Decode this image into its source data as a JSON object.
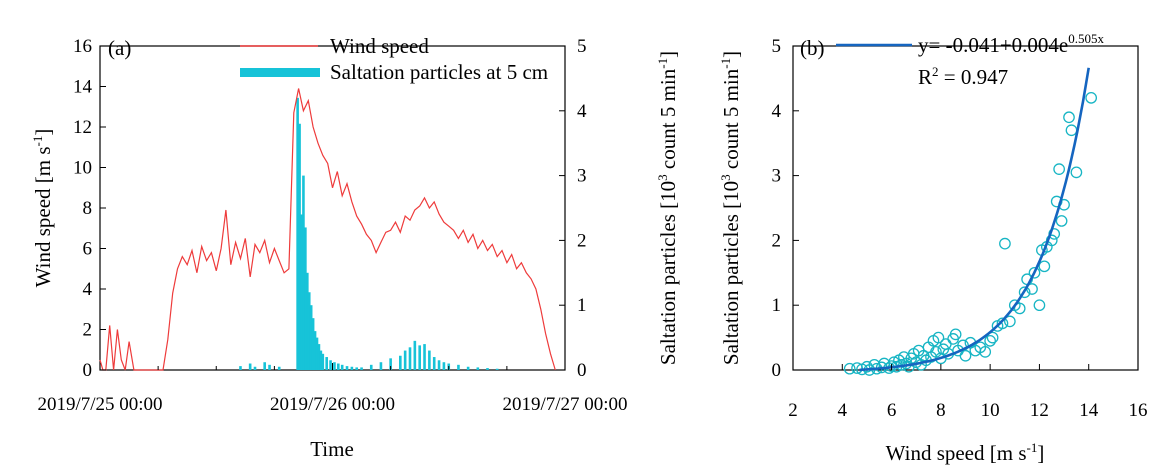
{
  "chart_data": [
    {
      "type": "line",
      "panel_label": "(a)",
      "xlabel": "Time",
      "ylabel_left": "Wind speed [m s",
      "ylabel_left_sup": "-1",
      "ylabel_left_end": "]",
      "ylabel_right": "Saltation particles [10",
      "ylabel_right_sup1": "3",
      "ylabel_right_mid": " count 5 min",
      "ylabel_right_sup2": "-1",
      "ylabel_right_end": "]",
      "x_tick_labels": [
        "2019/7/25 00:00",
        "2019/7/26 00:00",
        "2019/7/27 00:00"
      ],
      "x_range_hours": [
        0,
        48
      ],
      "ylim_left": [
        0,
        16
      ],
      "yticks_left": [
        "0",
        "2",
        "4",
        "6",
        "8",
        "10",
        "12",
        "14",
        "16"
      ],
      "ylim_right": [
        0,
        5
      ],
      "yticks_right": [
        "0",
        "1",
        "2",
        "3",
        "4",
        "5"
      ],
      "legend": {
        "placement": "top-center",
        "entries": [
          "Wind speed",
          "Saltation particles at 5 cm"
        ]
      },
      "series": [
        {
          "name": "Wind speed",
          "axis": "left",
          "color": "#ee3b3b",
          "x_hours": [
            0,
            0.3,
            0.6,
            1.0,
            1.4,
            1.8,
            2.2,
            2.6,
            3.0,
            3.5,
            4.0,
            4.5,
            5.0,
            5.5,
            6.0,
            6.5,
            7.0,
            7.5,
            8.0,
            8.5,
            9.0,
            9.5,
            10.0,
            10.5,
            11.0,
            11.5,
            12.0,
            12.5,
            13.0,
            13.5,
            14.0,
            14.5,
            15.0,
            15.5,
            16.0,
            16.5,
            17.0,
            17.5,
            18.0,
            18.5,
            19.0,
            19.5,
            20.0,
            20.5,
            21.0,
            21.5,
            22.0,
            22.5,
            23.0,
            23.5,
            24.0,
            24.5,
            25.0,
            25.5,
            26.0,
            26.5,
            27.0,
            27.5,
            28.0,
            28.5,
            29.0,
            29.5,
            30.0,
            30.5,
            31.0,
            31.5,
            32.0,
            32.5,
            33.0,
            33.5,
            34.0,
            34.5,
            35.0,
            35.5,
            36.0,
            36.5,
            37.0,
            37.5,
            38.0,
            38.5,
            39.0,
            39.5,
            40.0,
            40.5,
            41.0,
            41.5,
            42.0,
            42.5,
            43.0,
            43.5,
            44.0,
            44.5,
            45.0,
            45.5,
            46.0,
            46.5,
            47.0
          ],
          "values": [
            0.5,
            0,
            0,
            2.2,
            0,
            2.0,
            0.5,
            0,
            1.4,
            0,
            0,
            0,
            0,
            0,
            0,
            0,
            1.5,
            3.8,
            5.0,
            5.6,
            5.2,
            5.9,
            4.8,
            6.1,
            5.4,
            5.8,
            4.9,
            6.0,
            7.9,
            5.2,
            6.3,
            5.5,
            6.5,
            4.6,
            6.2,
            5.8,
            6.4,
            5.3,
            6.0,
            5.4,
            4.8,
            5.0,
            12.7,
            13.9,
            12.8,
            13.3,
            12.0,
            11.2,
            10.6,
            10.2,
            9.0,
            9.8,
            8.6,
            9.2,
            8.3,
            7.6,
            7.2,
            6.7,
            6.4,
            5.8,
            6.3,
            6.8,
            6.9,
            7.3,
            6.8,
            7.6,
            7.4,
            7.9,
            8.1,
            8.5,
            8.0,
            8.3,
            7.7,
            7.3,
            7.1,
            6.9,
            6.5,
            6.9,
            6.3,
            6.7,
            6.0,
            6.4,
            5.9,
            6.2,
            5.6,
            5.9,
            5.3,
            5.7,
            5.0,
            5.3,
            4.8,
            4.5,
            4.0,
            3.0,
            1.8,
            0.8,
            0
          ]
        },
        {
          "name": "Saltation particles at 5 cm",
          "axis": "right",
          "color": "#17c3d8",
          "x_hours": [
            14.5,
            15.5,
            16.0,
            17.0,
            17.5,
            18.5,
            20.4,
            20.6,
            20.8,
            21.0,
            21.2,
            21.4,
            21.6,
            21.8,
            22.0,
            22.2,
            22.4,
            22.6,
            22.8,
            23.0,
            23.4,
            23.8,
            24.2,
            24.6,
            25.0,
            25.5,
            26.0,
            26.5,
            27.0,
            28.0,
            29.0,
            30.0,
            31.0,
            31.5,
            32.0,
            32.5,
            33.0,
            33.5,
            34.0,
            34.5,
            35.0,
            35.5,
            36.0,
            37.0,
            38.0,
            39.0,
            40.0,
            41.0
          ],
          "values": [
            0.06,
            0.1,
            0.05,
            0.12,
            0.08,
            0.05,
            4.2,
            3.8,
            2.4,
            3.0,
            2.2,
            1.5,
            1.2,
            1.0,
            0.8,
            0.6,
            0.5,
            0.4,
            0.3,
            0.25,
            0.2,
            0.15,
            0.12,
            0.1,
            0.08,
            0.06,
            0.05,
            0.04,
            0.04,
            0.08,
            0.12,
            0.18,
            0.22,
            0.3,
            0.35,
            0.45,
            0.38,
            0.4,
            0.3,
            0.2,
            0.15,
            0.12,
            0.1,
            0.08,
            0.05,
            0.04,
            0.03,
            0.02
          ]
        }
      ]
    },
    {
      "type": "scatter",
      "panel_label": "(b)",
      "xlabel": "Wind speed [m s",
      "xlabel_sup": "-1",
      "xlabel_end": "]",
      "ylabel": "Saltation particles [10",
      "ylabel_sup1": "3",
      "ylabel_mid": " count 5 min",
      "ylabel_sup2": "-1",
      "ylabel_end": "]",
      "xlim": [
        2,
        16
      ],
      "xticks": [
        "2",
        "4",
        "6",
        "8",
        "10",
        "12",
        "14",
        "16"
      ],
      "ylim": [
        0,
        5
      ],
      "yticks": [
        "0",
        "1",
        "2",
        "3",
        "4",
        "5"
      ],
      "legend": {
        "placement": "top-center",
        "fit_label": "y= -0.041+0.004e",
        "fit_sup": "0.505x",
        "r2_label": "R",
        "r2_sup": "2",
        "r2_value": " = 0.947"
      },
      "fit": {
        "a": -0.041,
        "b": 0.004,
        "c": 0.505,
        "x_range": [
          4.7,
          14.0
        ],
        "color": "#1565c0"
      },
      "marker_color": "#17b5c4",
      "points": [
        [
          4.3,
          0.02
        ],
        [
          4.6,
          0.03
        ],
        [
          4.8,
          0.01
        ],
        [
          5.0,
          0.05
        ],
        [
          5.1,
          0.0
        ],
        [
          5.3,
          0.08
        ],
        [
          5.4,
          0.02
        ],
        [
          5.6,
          0.04
        ],
        [
          5.7,
          0.1
        ],
        [
          5.9,
          0.03
        ],
        [
          6.0,
          0.06
        ],
        [
          6.1,
          0.12
        ],
        [
          6.2,
          0.05
        ],
        [
          6.3,
          0.15
        ],
        [
          6.4,
          0.08
        ],
        [
          6.5,
          0.2
        ],
        [
          6.6,
          0.1
        ],
        [
          6.7,
          0.05
        ],
        [
          6.8,
          0.18
        ],
        [
          6.9,
          0.25
        ],
        [
          7.0,
          0.12
        ],
        [
          7.1,
          0.3
        ],
        [
          7.2,
          0.08
        ],
        [
          7.3,
          0.22
        ],
        [
          7.4,
          0.15
        ],
        [
          7.5,
          0.35
        ],
        [
          7.6,
          0.2
        ],
        [
          7.7,
          0.45
        ],
        [
          7.8,
          0.28
        ],
        [
          7.9,
          0.5
        ],
        [
          8.0,
          0.18
        ],
        [
          8.1,
          0.32
        ],
        [
          8.2,
          0.4
        ],
        [
          8.3,
          0.25
        ],
        [
          8.5,
          0.48
        ],
        [
          8.6,
          0.55
        ],
        [
          8.7,
          0.3
        ],
        [
          8.9,
          0.38
        ],
        [
          9.0,
          0.22
        ],
        [
          9.2,
          0.42
        ],
        [
          9.4,
          0.3
        ],
        [
          9.6,
          0.35
        ],
        [
          9.8,
          0.28
        ],
        [
          10.0,
          0.45
        ],
        [
          10.1,
          0.5
        ],
        [
          10.3,
          0.68
        ],
        [
          10.5,
          0.72
        ],
        [
          10.6,
          1.95
        ],
        [
          10.8,
          0.75
        ],
        [
          11.0,
          1.0
        ],
        [
          11.2,
          0.95
        ],
        [
          11.4,
          1.2
        ],
        [
          11.5,
          1.4
        ],
        [
          11.7,
          1.25
        ],
        [
          11.8,
          1.5
        ],
        [
          12.0,
          1.0
        ],
        [
          12.1,
          1.85
        ],
        [
          12.2,
          1.6
        ],
        [
          12.3,
          1.9
        ],
        [
          12.5,
          2.0
        ],
        [
          12.6,
          2.1
        ],
        [
          12.7,
          2.6
        ],
        [
          12.8,
          3.1
        ],
        [
          12.9,
          2.3
        ],
        [
          13.0,
          2.55
        ],
        [
          13.2,
          3.9
        ],
        [
          13.3,
          3.7
        ],
        [
          13.5,
          3.05
        ],
        [
          14.1,
          4.2
        ]
      ]
    }
  ]
}
